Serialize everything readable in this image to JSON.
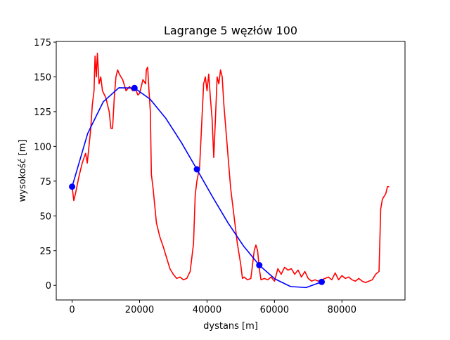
{
  "chart_data": {
    "type": "line",
    "title": "Lagrange 5 węzłów 100",
    "xlabel": "dystans [m]",
    "ylabel": "wysokość [m]",
    "xlim": [
      -4700,
      98700
    ],
    "ylim": [
      -10.5,
      175.5
    ],
    "xticks": [
      0,
      20000,
      40000,
      60000,
      80000
    ],
    "yticks": [
      0,
      25,
      50,
      75,
      100,
      125,
      150,
      175
    ],
    "series": [
      {
        "color": "#ff0000",
        "x": [
          0,
          500,
          1000,
          2000,
          3000,
          4000,
          4500,
          5000,
          5500,
          6000,
          6500,
          6800,
          7200,
          7500,
          8000,
          8500,
          9000,
          10000,
          11000,
          11500,
          12000,
          12500,
          13000,
          13500,
          14000,
          15000,
          16000,
          17000,
          18000,
          18500,
          19500,
          20000,
          21000,
          21800,
          22000,
          22400,
          22800,
          23200,
          23500,
          24000,
          25000,
          26000,
          27000,
          28000,
          29000,
          30000,
          31000,
          32000,
          33000,
          34000,
          35000,
          36000,
          36500,
          37000,
          37800,
          38500,
          39000,
          39500,
          40000,
          40500,
          41000,
          41500,
          42000,
          42500,
          43000,
          43500,
          44000,
          44500,
          45000,
          46000,
          47000,
          48000,
          49000,
          50000,
          50500,
          51000,
          52000,
          53000,
          54000,
          54500,
          55000,
          55500,
          56000,
          57000,
          58000,
          59000,
          60000,
          61000,
          62000,
          63000,
          64000,
          65000,
          66000,
          67000,
          68000,
          69000,
          70000,
          71000,
          72000,
          73000,
          74000,
          75000,
          76000,
          77000,
          78000,
          79000,
          80000,
          81000,
          82000,
          83000,
          84000,
          85000,
          86000,
          87000,
          88000,
          89000,
          90000,
          91000,
          91500,
          92000,
          93000,
          93500,
          94000
        ],
        "values": [
          71,
          61,
          66,
          78,
          88,
          95,
          88,
          100,
          112,
          130,
          140,
          165,
          150,
          167,
          145,
          150,
          140,
          135,
          125,
          113,
          113,
          135,
          150,
          155,
          152,
          148,
          140,
          143,
          140,
          143,
          137,
          138,
          148,
          145,
          155,
          157,
          140,
          125,
          80,
          70,
          45,
          35,
          28,
          20,
          12,
          8,
          5,
          6,
          4,
          5,
          10,
          30,
          65,
          75,
          85,
          120,
          145,
          150,
          140,
          152,
          135,
          120,
          92,
          120,
          150,
          145,
          155,
          150,
          130,
          100,
          70,
          50,
          30,
          15,
          5,
          6,
          4,
          5,
          25,
          29,
          25,
          12,
          4,
          5,
          4,
          6,
          3,
          12,
          8,
          13,
          11,
          12,
          8,
          11,
          6,
          10,
          5,
          3,
          4,
          3,
          4,
          5,
          6,
          4,
          9,
          4,
          7,
          5,
          6,
          4,
          3,
          5,
          3,
          2,
          3,
          4,
          8,
          10,
          55,
          62,
          66,
          71,
          71
        ]
      },
      {
        "color": "#0000ff",
        "x": [
          0,
          4625,
          9250,
          13875,
          18500,
          23125,
          27750,
          32375,
          37000,
          41625,
          46250,
          50875,
          55500,
          60125,
          64750,
          69375,
          74000
        ],
        "values": [
          71,
          109.33,
          132.14,
          142.17,
          142,
          134.0,
          120.3,
          102.88,
          83.5,
          63.72,
          44.89,
          28.16,
          14.5,
          4.66,
          -0.83,
          -1.59,
          2.5
        ]
      },
      {
        "color": "#0000ff",
        "marker": "o",
        "x": [
          0,
          18500,
          37000,
          55500,
          74000
        ],
        "values": [
          71,
          142,
          83.5,
          14.5,
          2.5
        ]
      }
    ]
  }
}
